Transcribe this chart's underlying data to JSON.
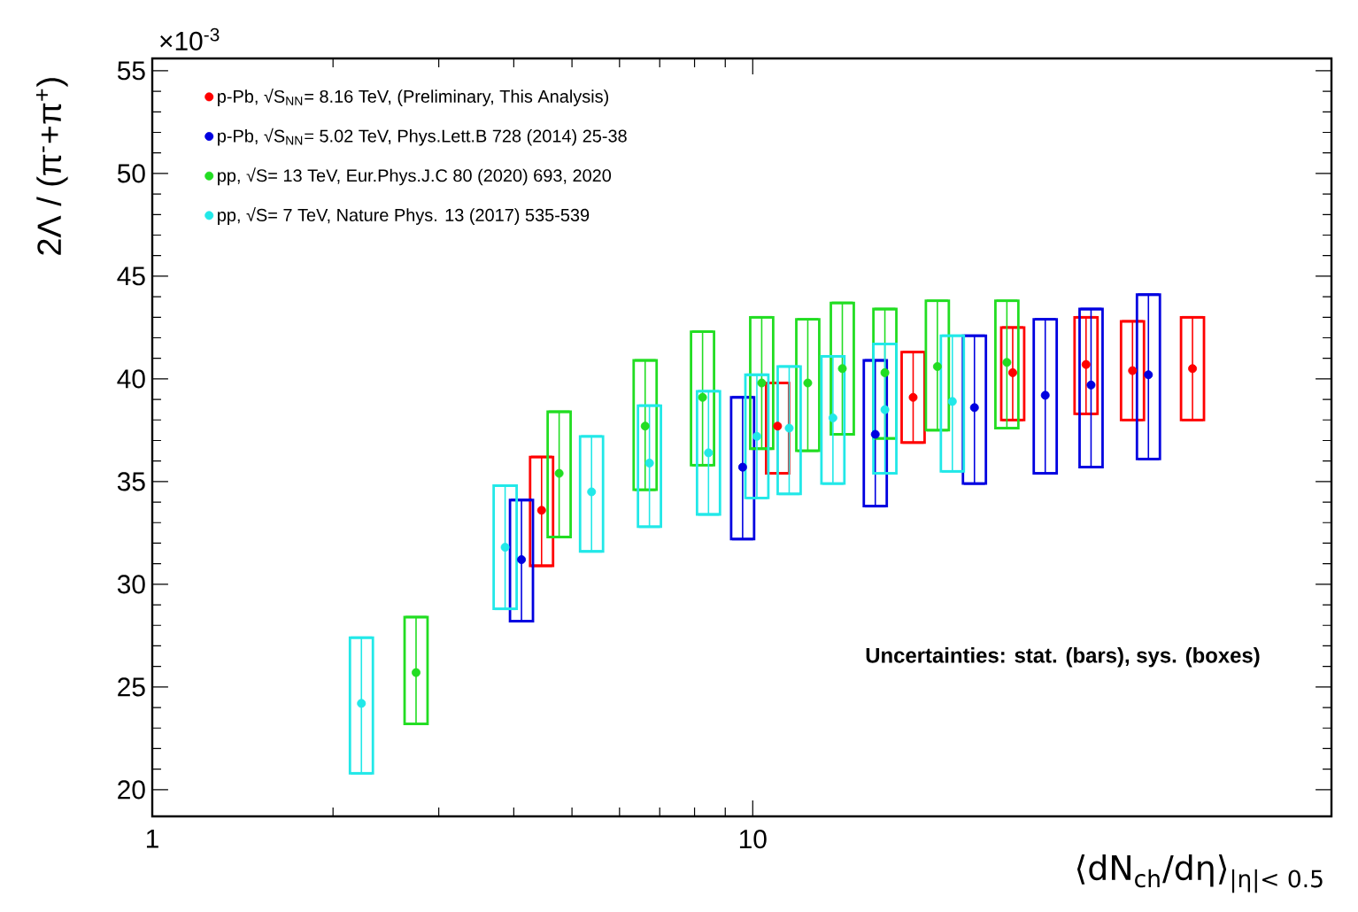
{
  "chart_data": {
    "type": "scatter",
    "xlabel": "⟨dN$_{ch}$/dη⟩$_{|η|< 0.5}$",
    "ylabel": "2Λ / (π$^{-}$+π$^{+}$)",
    "log": "x",
    "xlim": [
      1,
      92
    ],
    "ylim": [
      18.7,
      55.6
    ],
    "xticks": [
      1,
      10
    ],
    "yticks": [
      20,
      25,
      30,
      35,
      40,
      45,
      50,
      55
    ],
    "marker": "circle",
    "legend": "top left",
    "grid": false,
    "annotations": [
      "×10$^{-3}$",
      "Uncertainties: stat. (bars), sys. (boxes)"
    ],
    "series": [
      {
        "name": "p-Pb, √S$_{NN}$= 8.16 TeV, (Preliminary, This Analysis)",
        "color": "#ff0000",
        "x": [
          4.45,
          11.0,
          18.5,
          27.1,
          35.9,
          42.9,
          54.0
        ],
        "values": [
          33.6,
          37.7,
          39.1,
          40.3,
          40.7,
          40.4,
          40.5
        ],
        "errors": [
          [
            30.9,
            36.2
          ],
          [
            35.4,
            39.8
          ],
          [
            36.9,
            41.3
          ],
          [
            38.0,
            42.5
          ],
          [
            38.3,
            43.0
          ],
          [
            38.0,
            42.8
          ],
          [
            38.0,
            43.0
          ]
        ]
      },
      {
        "name": "p-Pb, √S$_{NN}$= 5.02 TeV, Phys.Lett.B 728 (2014) 25-38",
        "color": "#0000e0",
        "x": [
          4.12,
          9.62,
          16.0,
          23.4,
          30.7,
          36.6,
          45.6
        ],
        "values": [
          31.2,
          35.7,
          37.3,
          38.6,
          39.2,
          39.7,
          40.2
        ],
        "errors": [
          [
            28.2,
            34.1
          ],
          [
            32.2,
            39.1
          ],
          [
            33.8,
            40.9
          ],
          [
            34.9,
            42.1
          ],
          [
            35.4,
            42.9
          ],
          [
            35.7,
            43.4
          ],
          [
            36.1,
            44.1
          ]
        ]
      },
      {
        "name": "pp, √S= 13 TeV, Eur.Phys.J.C 80 (2020) 693, 2020",
        "color": "#22dd22",
        "x": [
          2.75,
          4.76,
          6.62,
          8.25,
          10.35,
          12.35,
          14.1,
          16.6,
          20.3,
          26.5
        ],
        "values": [
          25.7,
          35.4,
          37.7,
          39.1,
          39.8,
          39.8,
          40.5,
          40.3,
          40.6,
          40.8
        ],
        "errors": [
          [
            23.2,
            28.4
          ],
          [
            32.3,
            38.4
          ],
          [
            34.6,
            40.9
          ],
          [
            35.8,
            42.3
          ],
          [
            36.6,
            43.0
          ],
          [
            36.5,
            42.9
          ],
          [
            37.3,
            43.7
          ],
          [
            37.1,
            43.4
          ],
          [
            37.5,
            43.8
          ],
          [
            37.6,
            43.8
          ]
        ]
      },
      {
        "name": "pp, √S= 7 TeV, Nature Phys. 13 (2017) 535-539",
        "color": "#22e8e8",
        "x": [
          2.23,
          3.87,
          5.39,
          6.73,
          8.44,
          10.16,
          11.5,
          13.6,
          16.6,
          21.5
        ],
        "values": [
          24.2,
          31.8,
          34.5,
          35.9,
          36.4,
          37.2,
          37.6,
          38.1,
          38.5,
          38.9
        ],
        "errors": [
          [
            20.8,
            27.4
          ],
          [
            28.8,
            34.8
          ],
          [
            31.6,
            37.2
          ],
          [
            32.8,
            38.7
          ],
          [
            33.4,
            39.4
          ],
          [
            34.2,
            40.2
          ],
          [
            34.4,
            40.6
          ],
          [
            34.9,
            41.1
          ],
          [
            35.4,
            41.7
          ],
          [
            35.5,
            42.1
          ]
        ]
      }
    ]
  }
}
